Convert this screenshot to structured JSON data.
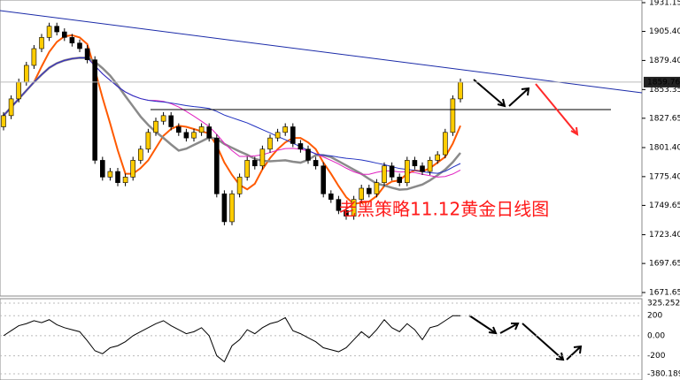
{
  "chart_data": {
    "type": "candlestick",
    "annotation": "老黑策略11.12黄金日线图",
    "last_price_label": "1859.76",
    "ylim": [
      1671.65,
      1931.15
    ],
    "yticks": [
      {
        "value": 1931.15,
        "label": "1931.15"
      },
      {
        "value": 1905.4,
        "label": "1905.40"
      },
      {
        "value": 1879.4,
        "label": "1879.40"
      },
      {
        "value": 1853.35,
        "label": "1853.35"
      },
      {
        "value": 1827.65,
        "label": "1827.65"
      },
      {
        "value": 1801.4,
        "label": "1801.40"
      },
      {
        "value": 1775.4,
        "label": "1775.40"
      },
      {
        "value": 1749.65,
        "label": "1749.65"
      },
      {
        "value": 1723.4,
        "label": "1723.40"
      },
      {
        "value": 1697.65,
        "label": "1697.65"
      },
      {
        "value": 1671.65,
        "label": "1671.65"
      }
    ],
    "close": [
      1830,
      1845,
      1860,
      1875,
      1890,
      1900,
      1910,
      1905,
      1900,
      1895,
      1890,
      1880,
      1790,
      1775,
      1780,
      1770,
      1775,
      1790,
      1800,
      1815,
      1825,
      1830,
      1820,
      1815,
      1810,
      1815,
      1820,
      1810,
      1760,
      1735,
      1760,
      1775,
      1790,
      1785,
      1800,
      1810,
      1815,
      1820,
      1805,
      1800,
      1790,
      1785,
      1760,
      1755,
      1745,
      1740,
      1755,
      1765,
      1760,
      1770,
      1785,
      1775,
      1770,
      1790,
      1785,
      1780,
      1790,
      1795,
      1815,
      1845,
      1860
    ],
    "up_color": "#ffcc00",
    "down_color": "#000000",
    "indicator": {
      "ylim": [
        -380.189,
        325.2521
      ],
      "yticks": [
        {
          "value": 325.2521,
          "label": "325.2521"
        },
        200,
        {
          "value": 0,
          "label": "0.00"
        },
        -200,
        -380.189
      ],
      "values": [
        0,
        50,
        100,
        120,
        150,
        130,
        160,
        110,
        80,
        60,
        40,
        -50,
        -150,
        -180,
        -120,
        -100,
        -60,
        0,
        40,
        80,
        120,
        150,
        100,
        60,
        20,
        40,
        80,
        0,
        -200,
        -260,
        -100,
        -40,
        60,
        20,
        80,
        120,
        140,
        180,
        50,
        20,
        -20,
        -60,
        -120,
        -140,
        -160,
        -120,
        -40,
        40,
        -20,
        60,
        160,
        80,
        40,
        120,
        60,
        -40,
        80,
        100,
        150,
        200,
        200
      ]
    }
  }
}
